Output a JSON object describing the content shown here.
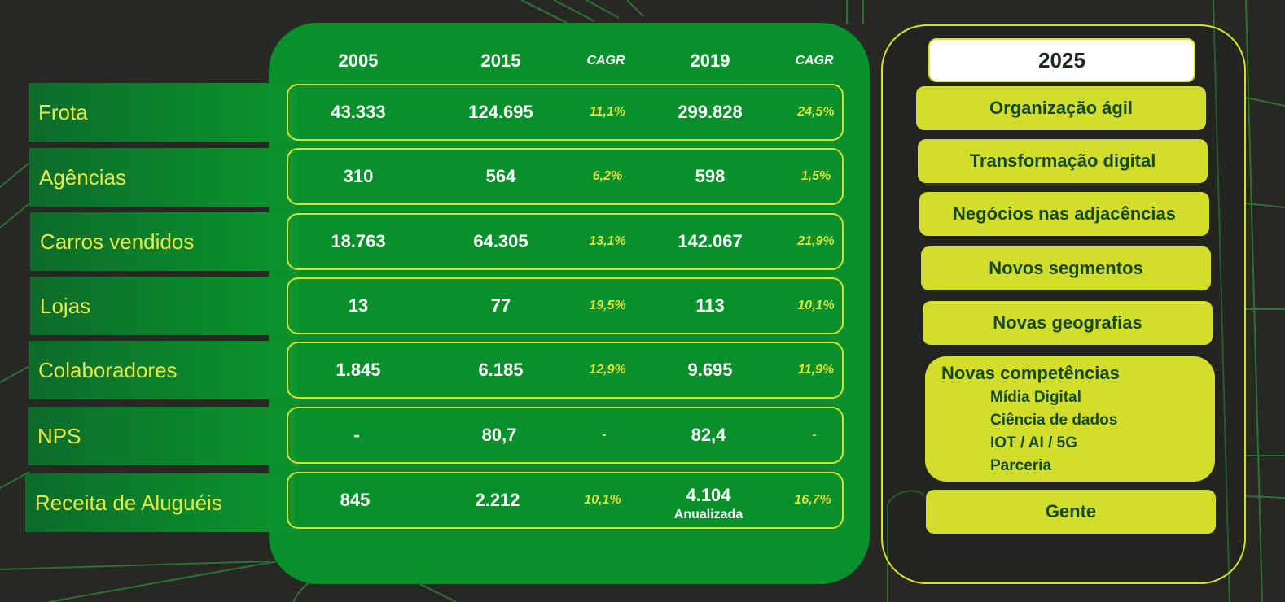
{
  "table": {
    "columns": [
      "2005",
      "2015",
      "CAGR",
      "2019",
      "CAGR"
    ],
    "rows": [
      {
        "label": "Frota",
        "v2005": "43.333",
        "v2015": "124.695",
        "cagr1": "11,1%",
        "v2019": "299.828",
        "cagr2": "24,5%"
      },
      {
        "label": "Agências",
        "v2005": "310",
        "v2015": "564",
        "cagr1": "6,2%",
        "v2019": "598",
        "cagr2": "1,5%"
      },
      {
        "label": "Carros vendidos",
        "v2005": "18.763",
        "v2015": "64.305",
        "cagr1": "13,1%",
        "v2019": "142.067",
        "cagr2": "21,9%"
      },
      {
        "label": "Lojas",
        "v2005": "13",
        "v2015": "77",
        "cagr1": "19,5%",
        "v2019": "113",
        "cagr2": "10,1%"
      },
      {
        "label": "Colaboradores",
        "v2005": "1.845",
        "v2015": "6.185",
        "cagr1": "12,9%",
        "v2019": "9.695",
        "cagr2": "11,9%"
      },
      {
        "label": "NPS",
        "v2005": "-",
        "v2015": "80,7",
        "cagr1": "-",
        "v2019": "82,4",
        "cagr2": "-"
      },
      {
        "label": "Receita de Aluguéis",
        "v2005": "845",
        "v2015": "2.212",
        "cagr1": "10,1%",
        "v2019": "4.104",
        "v2019_note": "Anualizada",
        "cagr2": "16,7%"
      }
    ]
  },
  "vision": {
    "year": "2025",
    "items": [
      "Organização ágil",
      "Transformação digital",
      "Negócios nas adjacências",
      "Novos segmentos",
      "Novas geografias"
    ],
    "competencias": {
      "title": "Novas competências",
      "subitems": [
        "Mídia Digital",
        "Ciência de dados",
        "IOT / AI / 5G",
        "Parceria"
      ]
    },
    "last": "Gente"
  },
  "colors": {
    "background": "#272823",
    "panel_green": "#07902b",
    "accent_yellow": "#d3de2a",
    "text_dark_green": "#16492a"
  }
}
